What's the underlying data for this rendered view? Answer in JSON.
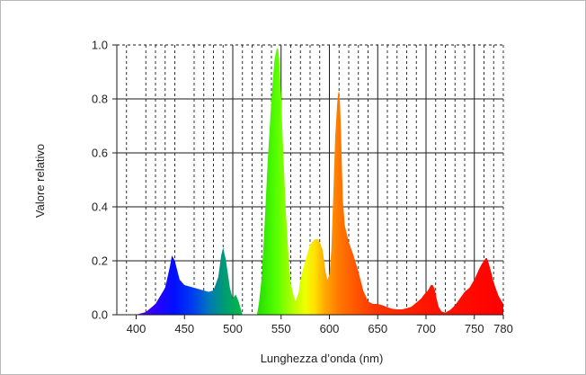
{
  "chart_data": {
    "type": "area",
    "title": "",
    "xlabel": "Lunghezza d’onda (nm)",
    "ylabel": "Valore relativo",
    "xlim": [
      380,
      780
    ],
    "ylim": [
      0.0,
      1.0
    ],
    "x_ticks": [
      400,
      450,
      500,
      550,
      600,
      650,
      700,
      750,
      780
    ],
    "x_tick_labels": [
      "400",
      "450",
      "500",
      "550",
      "600",
      "650",
      "700",
      "750",
      "780"
    ],
    "y_ticks": [
      0.0,
      0.2,
      0.4,
      0.6,
      0.8,
      1.0
    ],
    "y_tick_labels": [
      "0.0",
      "0.2",
      "0.4",
      "0.6",
      "0.8",
      "1.0"
    ],
    "grid": {
      "major_solid_x": [
        500,
        550,
        600,
        650,
        700,
        750
      ],
      "minor_dashed_x": [
        390,
        410,
        420,
        430,
        440,
        460,
        470,
        480,
        490,
        510,
        520,
        530,
        540,
        560,
        570,
        580,
        590,
        610,
        620,
        630,
        640,
        660,
        670,
        680,
        690,
        710,
        720,
        730,
        740,
        760,
        770
      ],
      "horizontal_solid_y": [
        0.2,
        0.4,
        0.6,
        0.8
      ]
    },
    "legend": "none",
    "series": [
      {
        "x": [
          400,
          410,
          420,
          430,
          435,
          437,
          440,
          445,
          450,
          460,
          470,
          475,
          480,
          485,
          488,
          490,
          493,
          497,
          500,
          503,
          506,
          510,
          525,
          527,
          530,
          533,
          536,
          540,
          543,
          545,
          546,
          547,
          548,
          550,
          552,
          555,
          558,
          560,
          563,
          565,
          568,
          570,
          575,
          580,
          585,
          588,
          590,
          593,
          596,
          598,
          600,
          602,
          604,
          606,
          608,
          609,
          610,
          611,
          612,
          613,
          614,
          616,
          618,
          620,
          625,
          630,
          635,
          640,
          645,
          650,
          655,
          660,
          665,
          670,
          675,
          680,
          685,
          690,
          695,
          698,
          702,
          705,
          707,
          709,
          711,
          713,
          716,
          720,
          725,
          730,
          735,
          740,
          745,
          750,
          755,
          758,
          760,
          762,
          763,
          765,
          768,
          770,
          775,
          780
        ],
        "y": [
          0.0,
          0.01,
          0.04,
          0.1,
          0.18,
          0.22,
          0.2,
          0.13,
          0.11,
          0.1,
          0.09,
          0.085,
          0.09,
          0.14,
          0.22,
          0.25,
          0.2,
          0.1,
          0.06,
          0.075,
          0.05,
          0.0,
          0.0,
          0.04,
          0.14,
          0.34,
          0.56,
          0.8,
          0.94,
          0.98,
          0.99,
          0.98,
          0.95,
          0.82,
          0.62,
          0.38,
          0.2,
          0.12,
          0.07,
          0.05,
          0.08,
          0.13,
          0.2,
          0.26,
          0.28,
          0.28,
          0.27,
          0.24,
          0.16,
          0.13,
          0.15,
          0.24,
          0.44,
          0.66,
          0.78,
          0.82,
          0.83,
          0.78,
          0.68,
          0.54,
          0.42,
          0.33,
          0.3,
          0.27,
          0.22,
          0.16,
          0.09,
          0.05,
          0.04,
          0.04,
          0.035,
          0.028,
          0.022,
          0.02,
          0.02,
          0.024,
          0.03,
          0.045,
          0.06,
          0.075,
          0.09,
          0.11,
          0.11,
          0.095,
          0.06,
          0.03,
          0.012,
          0.008,
          0.018,
          0.035,
          0.06,
          0.085,
          0.1,
          0.13,
          0.17,
          0.19,
          0.2,
          0.21,
          0.21,
          0.19,
          0.15,
          0.12,
          0.07,
          0.04
        ]
      }
    ],
    "spectrum_gradient": [
      {
        "nm": 400,
        "color": "#5a00cc"
      },
      {
        "nm": 420,
        "color": "#2a00ff"
      },
      {
        "nm": 440,
        "color": "#0010ff"
      },
      {
        "nm": 460,
        "color": "#0040ee"
      },
      {
        "nm": 475,
        "color": "#0077bb"
      },
      {
        "nm": 490,
        "color": "#009977"
      },
      {
        "nm": 510,
        "color": "#00bb40"
      },
      {
        "nm": 525,
        "color": "#22dd00"
      },
      {
        "nm": 545,
        "color": "#55ff00"
      },
      {
        "nm": 560,
        "color": "#a8ff00"
      },
      {
        "nm": 575,
        "color": "#eeff00"
      },
      {
        "nm": 585,
        "color": "#ffe000"
      },
      {
        "nm": 595,
        "color": "#ffaa00"
      },
      {
        "nm": 610,
        "color": "#ff7700"
      },
      {
        "nm": 630,
        "color": "#ff5000"
      },
      {
        "nm": 650,
        "color": "#ff3300"
      },
      {
        "nm": 700,
        "color": "#ff1500"
      },
      {
        "nm": 780,
        "color": "#ff0000"
      }
    ],
    "colors": {
      "grid": "#1a1a1a",
      "frame": "#1a1a1a",
      "text": "#222222"
    }
  }
}
